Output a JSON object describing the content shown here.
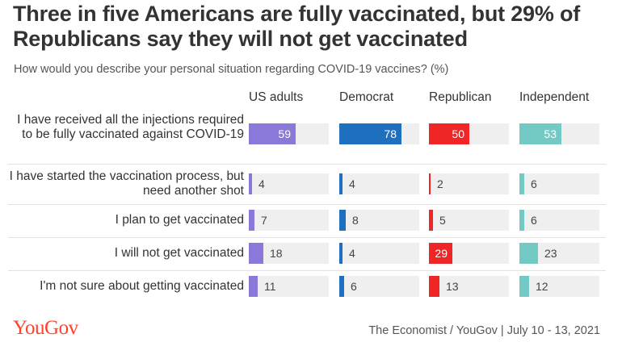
{
  "chart_data": {
    "type": "bar",
    "title": "Three in five Americans are fully vaccinated, but 29% of Republicans say they will not get vaccinated",
    "subtitle": "How would you describe your personal situation regarding COVID-19 vaccines? (%)",
    "categories": [
      "I have received all the injections required to be fully vaccinated against COVID-19",
      "I have started the vaccination process, but need another shot",
      "I plan to get vaccinated",
      "I will not get vaccinated",
      "I'm not sure about getting vaccinated"
    ],
    "series": [
      {
        "name": "US adults",
        "color": "#8b78d8",
        "values": [
          59,
          4,
          7,
          18,
          11
        ]
      },
      {
        "name": "Democrat",
        "color": "#1f6fc0",
        "values": [
          78,
          4,
          8,
          4,
          6
        ]
      },
      {
        "name": "Republican",
        "color": "#f02626",
        "values": [
          50,
          2,
          5,
          29,
          13
        ]
      },
      {
        "name": "Independent",
        "color": "#73c9c3",
        "values": [
          53,
          6,
          6,
          23,
          12
        ]
      }
    ],
    "xlim": [
      0,
      100
    ]
  },
  "brand": {
    "logo": "YouGov",
    "color": "#ff412c"
  },
  "source": "The Economist / YouGov | July 10 - 13, 2021"
}
